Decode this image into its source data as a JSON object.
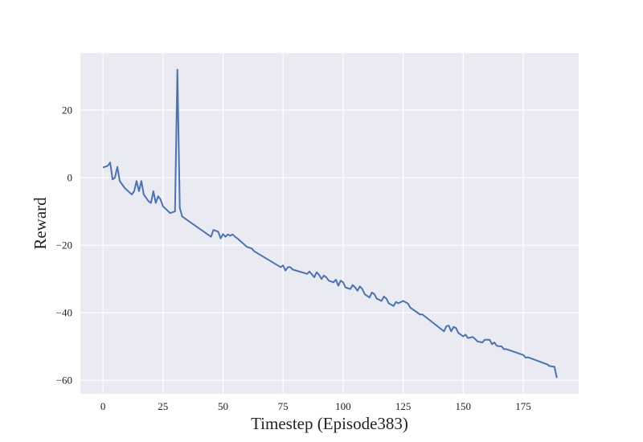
{
  "chart_data": {
    "type": "line",
    "xlabel": "Timestep (Episode383)",
    "ylabel": "Reward",
    "xlim": [
      -9.4,
      198.1
    ],
    "ylim": [
      -64.0,
      36.9
    ],
    "xticks": [
      0,
      25,
      50,
      75,
      100,
      125,
      150,
      175
    ],
    "yticks": [
      {
        "value": -60,
        "label": "−60"
      },
      {
        "value": -40,
        "label": "−40"
      },
      {
        "value": -20,
        "label": "−20"
      },
      0,
      20
    ],
    "grid": true,
    "background": "#eaeaf2",
    "series": [
      {
        "color": "#4c72b0",
        "x": [
          0,
          2,
          3,
          4,
          5,
          6,
          7,
          9,
          12,
          13,
          14,
          15,
          16,
          17,
          19,
          20,
          21,
          22,
          23,
          24,
          25,
          28,
          30,
          31,
          32,
          33,
          45,
          46,
          48,
          49,
          50,
          51,
          52,
          53,
          54,
          55,
          56,
          60,
          62,
          63,
          74,
          75,
          76,
          77,
          78,
          79,
          85,
          86,
          88,
          89,
          90,
          91,
          92,
          93,
          94,
          96,
          97,
          98,
          99,
          100,
          101,
          103,
          104,
          105,
          106,
          107,
          108,
          109,
          111,
          112,
          113,
          114,
          116,
          117,
          118,
          119,
          121,
          122,
          123,
          125,
          127,
          128,
          132,
          133,
          142,
          143,
          144,
          145,
          146,
          147,
          148,
          150,
          151,
          152,
          154,
          155,
          156,
          158,
          159,
          161,
          162,
          163,
          164,
          166,
          167,
          168,
          175,
          176,
          177,
          185,
          186,
          188,
          189
        ],
        "values": [
          3,
          3.5,
          4.5,
          -0.5,
          0,
          3.2,
          -1,
          -3,
          -5,
          -4,
          -1,
          -4,
          -1,
          -5,
          -7,
          -7.5,
          -4,
          -7.5,
          -5.5,
          -6.5,
          -8.5,
          -10.5,
          -10,
          32,
          -9,
          -11.5,
          -17.5,
          -15.5,
          -16,
          -18,
          -16.7,
          -17.5,
          -16.8,
          -17.2,
          -16.8,
          -17.5,
          -18,
          -20.5,
          -21,
          -21.8,
          -26.5,
          -26,
          -27.5,
          -26.5,
          -26.5,
          -27.2,
          -28.5,
          -27.8,
          -29.5,
          -28,
          -28.8,
          -30,
          -29,
          -29.5,
          -30.5,
          -31,
          -30.2,
          -32,
          -30.5,
          -31,
          -32.5,
          -33,
          -31.8,
          -32.5,
          -33.5,
          -32.2,
          -33,
          -34.5,
          -35.5,
          -34,
          -34.5,
          -35.8,
          -36.5,
          -35.2,
          -35.8,
          -37.2,
          -38,
          -36.8,
          -37.2,
          -36.5,
          -37.3,
          -38.5,
          -40.5,
          -40.5,
          -45.5,
          -44,
          -43.8,
          -45.5,
          -44.2,
          -44.5,
          -46,
          -47,
          -46.5,
          -47.5,
          -47.2,
          -47.8,
          -48.5,
          -48.8,
          -48,
          -48,
          -49.3,
          -48.8,
          -49.8,
          -50,
          -50.8,
          -50.8,
          -52.5,
          -53.3,
          -53.2,
          -55.3,
          -55.8,
          -56,
          -59.3
        ]
      }
    ]
  }
}
